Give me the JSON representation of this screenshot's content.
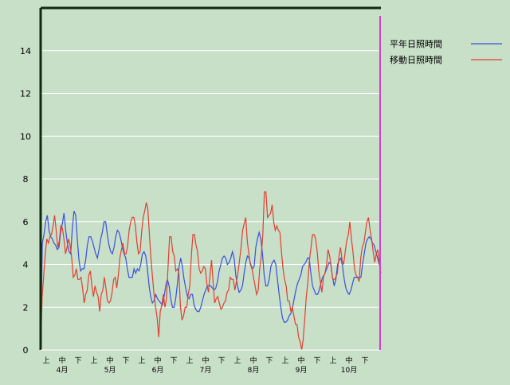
{
  "chart_data": {
    "type": "line",
    "title": "",
    "xlabel": "",
    "ylabel": "",
    "ylim": [
      0,
      16
    ],
    "yticks": [
      0,
      2,
      4,
      6,
      8,
      10,
      12,
      14
    ],
    "grid": true,
    "legend_position": "top-right",
    "x_tick_labels": [
      "上",
      "中",
      "下",
      "上",
      "中",
      "下",
      "上",
      "中",
      "下",
      "上",
      "中",
      "下",
      "上",
      "中",
      "下",
      "上",
      "中",
      "下",
      "上",
      "中",
      "下"
    ],
    "month_labels": [
      "4月",
      "5月",
      "6月",
      "7月",
      "8月",
      "9月",
      "10月"
    ],
    "x_range": [
      1,
      214
    ],
    "series": [
      {
        "name": "平年日照時間",
        "color": "#3a4fe0",
        "values": [
          0,
          5.0,
          5.4,
          6.0,
          6.3,
          5.6,
          5.3,
          5.2,
          5.0,
          4.9,
          4.7,
          4.8,
          5.5,
          5.9,
          6.4,
          5.6,
          5.0,
          4.6,
          4.5,
          5.7,
          6.5,
          6.3,
          5.2,
          4.2,
          3.7,
          3.8,
          3.8,
          4.2,
          4.9,
          5.3,
          5.3,
          5.1,
          4.8,
          4.5,
          4.3,
          4.7,
          5.2,
          5.5,
          6.0,
          6.0,
          5.4,
          4.9,
          4.6,
          4.5,
          4.8,
          5.3,
          5.6,
          5.5,
          5.2,
          4.8,
          4.5,
          4.3,
          3.8,
          3.4,
          3.4,
          3.4,
          3.8,
          3.6,
          3.8,
          3.7,
          4.0,
          4.5,
          4.6,
          4.4,
          3.8,
          3.0,
          2.5,
          2.2,
          2.3,
          2.6,
          2.4,
          2.3,
          2.2,
          2.1,
          2.5,
          3.0,
          3.3,
          3.0,
          2.4,
          2.0,
          2.0,
          2.4,
          3.1,
          3.9,
          4.3,
          3.9,
          3.3,
          2.9,
          2.5,
          2.4,
          2.6,
          2.6,
          2.1,
          1.9,
          1.8,
          1.8,
          2.0,
          2.3,
          2.6,
          2.8,
          3.0,
          3.0,
          3.0,
          2.9,
          2.8,
          2.9,
          3.2,
          3.7,
          4.0,
          4.3,
          4.4,
          4.3,
          4.0,
          4.1,
          4.3,
          4.6,
          4.3,
          3.5,
          3.0,
          2.7,
          2.8,
          3.0,
          3.6,
          4.1,
          4.4,
          4.3,
          4.0,
          3.8,
          3.9,
          4.8,
          5.2,
          5.5,
          5.2,
          4.5,
          3.5,
          3.0,
          3.0,
          3.3,
          3.9,
          4.1,
          4.2,
          4.0,
          3.3,
          2.6,
          2.0,
          1.5,
          1.3,
          1.3,
          1.4,
          1.6,
          1.7,
          2.0,
          2.4,
          2.8,
          3.1,
          3.3,
          3.5,
          3.9,
          4.0,
          4.1,
          4.3,
          4.3,
          3.6,
          3.0,
          2.8,
          2.6,
          2.6,
          2.8,
          3.1,
          3.4,
          3.5,
          3.7,
          3.9,
          4.1,
          4.0,
          3.4,
          3.0,
          3.3,
          4.0,
          4.2,
          4.3,
          3.9,
          3.3,
          2.9,
          2.7,
          2.6,
          2.8,
          3.1,
          3.4,
          3.4,
          3.4,
          3.4,
          3.4,
          4.0,
          4.5,
          5.0,
          5.2,
          5.3,
          5.2,
          5.0,
          4.9,
          4.6,
          4.3,
          4.0,
          3.8
        ]
      },
      {
        "name": "移動日照時間",
        "color": "#e04030",
        "values": [
          0,
          2.5,
          3.5,
          4.5,
          5.2,
          5.0,
          5.3,
          5.4,
          5.8,
          6.3,
          5.6,
          4.8,
          5.1,
          5.8,
          5.7,
          5.2,
          4.5,
          4.8,
          5.2,
          4.9,
          4.3,
          3.4,
          3.5,
          3.8,
          3.3,
          3.3,
          3.4,
          2.9,
          2.2,
          2.6,
          2.8,
          3.5,
          3.7,
          3.0,
          2.5,
          3.0,
          2.7,
          2.5,
          1.8,
          2.6,
          2.8,
          3.4,
          2.9,
          2.3,
          2.2,
          2.3,
          2.7,
          3.3,
          3.4,
          2.9,
          3.5,
          4.3,
          4.7,
          5.0,
          4.5,
          4.5,
          4.9,
          5.6,
          6.0,
          6.2,
          6.2,
          5.8,
          5.0,
          4.5,
          4.6,
          5.5,
          6.2,
          6.5,
          6.9,
          6.6,
          5.4,
          4.3,
          3.4,
          2.6,
          2.0,
          1.5,
          0.6,
          1.8,
          2.1,
          2.6,
          2.0,
          2.4,
          3.9,
          5.3,
          5.3,
          4.6,
          4.4,
          3.7,
          3.8,
          3.6,
          2.0,
          1.4,
          1.6,
          2.0,
          2.0,
          2.6,
          3.0,
          4.4,
          5.4,
          5.4,
          4.9,
          4.6,
          3.8,
          3.6,
          3.7,
          3.9,
          3.8,
          3.1,
          2.7,
          3.5,
          4.2,
          3.2,
          2.2,
          2.4,
          2.5,
          2.2,
          1.9,
          2.0,
          2.2,
          2.3,
          2.7,
          2.8,
          3.4,
          3.3,
          3.3,
          2.8,
          3.2,
          3.6,
          4.2,
          4.8,
          5.6,
          5.9,
          6.2,
          5.1,
          4.5,
          4.0,
          3.8,
          3.4,
          3.0,
          2.6,
          2.8,
          3.8,
          4.4,
          5.4,
          7.4,
          7.4,
          6.2,
          6.3,
          6.4,
          6.8,
          6.0,
          5.6,
          5.8,
          5.6,
          5.5,
          4.6,
          3.8,
          3.3,
          3.0,
          2.3,
          2.3,
          1.8,
          2.0,
          1.6,
          1.2,
          1.2,
          0.6,
          0.4,
          0,
          0.5,
          1.5,
          2.5,
          3.2,
          4.2,
          4.8,
          5.4,
          5.4,
          5.2,
          4.6,
          3.7,
          3.2,
          2.7,
          3.4,
          3.6,
          4.0,
          4.7,
          4.4,
          3.9,
          3.3,
          3.3,
          3.4,
          3.6,
          4.4,
          4.8,
          4.2,
          4.0,
          4.6,
          5.1,
          5.4,
          6.0,
          5.2,
          4.6,
          3.8,
          3.5,
          3.4,
          3.2,
          4.3,
          4.8,
          5.0,
          5.5,
          6.0,
          6.2,
          5.6,
          5.2,
          4.6,
          4.1,
          4.5,
          4.7,
          4.0,
          3.6
        ]
      }
    ]
  }
}
